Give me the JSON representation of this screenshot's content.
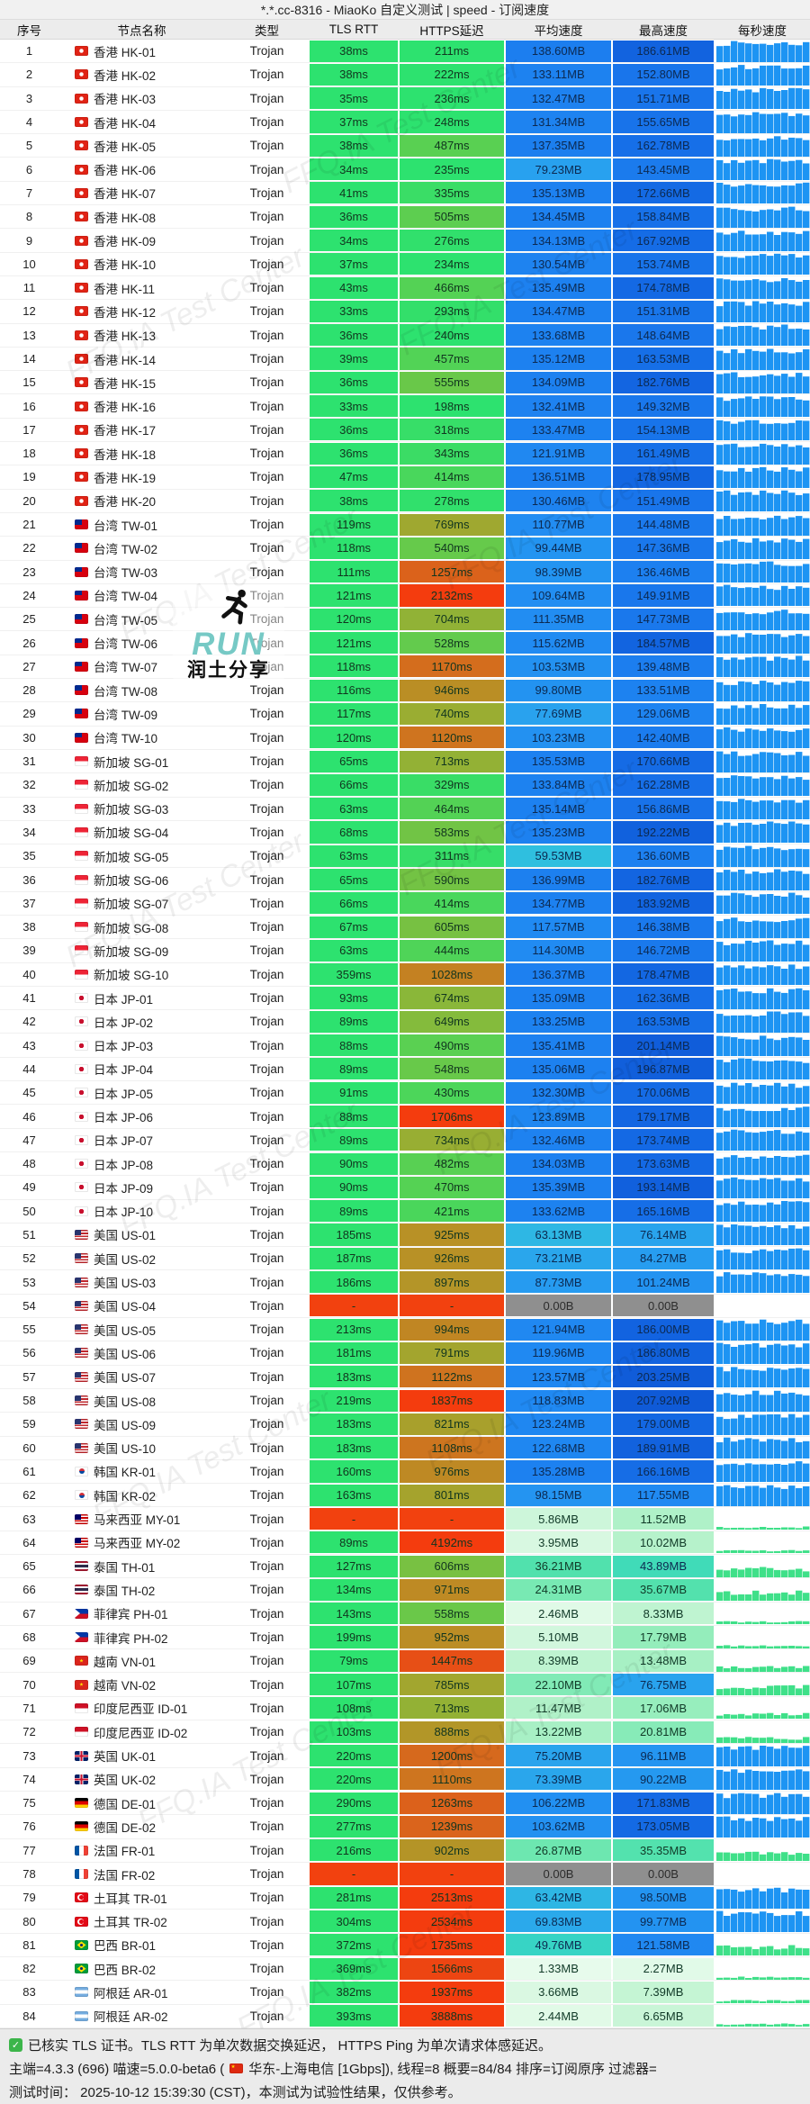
{
  "title": "*.*.cc-8316 - MiaoKo 自定义测试 | speed - 订阅速度",
  "watermark": {
    "text": "FFQ.IA Test Center"
  },
  "logo": {
    "run": "RUN",
    "caption": "润土分享"
  },
  "colors": {
    "rtt_ok": "#2de26f",
    "fail": "#f2410f",
    "zero_bg": "#8f8f8f",
    "spark_blue": "#1d94f3",
    "spark_green": "#3fe089",
    "latency_stops": [
      [
        250,
        "#2de26f"
      ],
      [
        350,
        "#3cdc64"
      ],
      [
        450,
        "#50d457"
      ],
      [
        550,
        "#68c94a"
      ],
      [
        650,
        "#84bb3c"
      ],
      [
        750,
        "#9cab31"
      ],
      [
        850,
        "#ad9c2a"
      ],
      [
        950,
        "#bb8d25"
      ],
      [
        1050,
        "#c77e21"
      ],
      [
        1150,
        "#d26f1e"
      ],
      [
        1300,
        "#df5d1a"
      ],
      [
        1500,
        "#ea4a14"
      ],
      [
        1700,
        "#f43c0e"
      ]
    ],
    "speed_stops": [
      [
        0,
        "#eefcf2"
      ],
      [
        2,
        "#e3fae9"
      ],
      [
        5,
        "#d2f7dd"
      ],
      [
        10,
        "#b6f2cb"
      ],
      [
        18,
        "#93edbb"
      ],
      [
        28,
        "#68e6af"
      ],
      [
        38,
        "#4ce0ad"
      ],
      [
        48,
        "#38d8c0"
      ],
      [
        58,
        "#30c3dd"
      ],
      [
        68,
        "#2cabea"
      ],
      [
        80,
        "#28a0ef"
      ],
      [
        95,
        "#2496f1"
      ],
      [
        115,
        "#218bf2"
      ],
      [
        135,
        "#1d81f0"
      ],
      [
        155,
        "#1873ea"
      ],
      [
        180,
        "#1366e2"
      ],
      [
        210,
        "#0f59d6"
      ]
    ]
  },
  "table": {
    "columns": [
      "序号",
      "节点名称",
      "类型",
      "TLS RTT",
      "HTTPS延迟",
      "平均速度",
      "最高速度",
      "每秒速度"
    ],
    "rows": [
      [
        1,
        "hk",
        "香港 HK-01",
        "Trojan",
        "38ms",
        "211ms",
        "138.60MB",
        "186.61MB"
      ],
      [
        2,
        "hk",
        "香港 HK-02",
        "Trojan",
        "38ms",
        "222ms",
        "133.11MB",
        "152.80MB"
      ],
      [
        3,
        "hk",
        "香港 HK-03",
        "Trojan",
        "35ms",
        "236ms",
        "132.47MB",
        "151.71MB"
      ],
      [
        4,
        "hk",
        "香港 HK-04",
        "Trojan",
        "37ms",
        "248ms",
        "131.34MB",
        "155.65MB"
      ],
      [
        5,
        "hk",
        "香港 HK-05",
        "Trojan",
        "38ms",
        "487ms",
        "137.35MB",
        "162.78MB"
      ],
      [
        6,
        "hk",
        "香港 HK-06",
        "Trojan",
        "34ms",
        "235ms",
        "79.23MB",
        "143.45MB"
      ],
      [
        7,
        "hk",
        "香港 HK-07",
        "Trojan",
        "41ms",
        "335ms",
        "135.13MB",
        "172.66MB"
      ],
      [
        8,
        "hk",
        "香港 HK-08",
        "Trojan",
        "36ms",
        "505ms",
        "134.45MB",
        "158.84MB"
      ],
      [
        9,
        "hk",
        "香港 HK-09",
        "Trojan",
        "34ms",
        "276ms",
        "134.13MB",
        "167.92MB"
      ],
      [
        10,
        "hk",
        "香港 HK-10",
        "Trojan",
        "37ms",
        "234ms",
        "130.54MB",
        "153.74MB"
      ],
      [
        11,
        "hk",
        "香港 HK-11",
        "Trojan",
        "43ms",
        "466ms",
        "135.49MB",
        "174.78MB"
      ],
      [
        12,
        "hk",
        "香港 HK-12",
        "Trojan",
        "33ms",
        "293ms",
        "134.47MB",
        "151.31MB"
      ],
      [
        13,
        "hk",
        "香港 HK-13",
        "Trojan",
        "36ms",
        "240ms",
        "133.68MB",
        "148.64MB"
      ],
      [
        14,
        "hk",
        "香港 HK-14",
        "Trojan",
        "39ms",
        "457ms",
        "135.12MB",
        "163.53MB"
      ],
      [
        15,
        "hk",
        "香港 HK-15",
        "Trojan",
        "36ms",
        "555ms",
        "134.09MB",
        "182.76MB"
      ],
      [
        16,
        "hk",
        "香港 HK-16",
        "Trojan",
        "33ms",
        "198ms",
        "132.41MB",
        "149.32MB"
      ],
      [
        17,
        "hk",
        "香港 HK-17",
        "Trojan",
        "36ms",
        "318ms",
        "133.47MB",
        "154.13MB"
      ],
      [
        18,
        "hk",
        "香港 HK-18",
        "Trojan",
        "36ms",
        "343ms",
        "121.91MB",
        "161.49MB"
      ],
      [
        19,
        "hk",
        "香港 HK-19",
        "Trojan",
        "47ms",
        "414ms",
        "136.51MB",
        "178.95MB"
      ],
      [
        20,
        "hk",
        "香港 HK-20",
        "Trojan",
        "38ms",
        "278ms",
        "130.46MB",
        "151.49MB"
      ],
      [
        21,
        "tw",
        "台湾 TW-01",
        "Trojan",
        "119ms",
        "769ms",
        "110.77MB",
        "144.48MB"
      ],
      [
        22,
        "tw",
        "台湾 TW-02",
        "Trojan",
        "118ms",
        "540ms",
        "99.44MB",
        "147.36MB"
      ],
      [
        23,
        "tw",
        "台湾 TW-03",
        "Trojan",
        "111ms",
        "1257ms",
        "98.39MB",
        "136.46MB"
      ],
      [
        24,
        "tw",
        "台湾 TW-04",
        "Trojan",
        "121ms",
        "2132ms",
        "109.64MB",
        "149.91MB"
      ],
      [
        25,
        "tw",
        "台湾 TW-05",
        "Trojan",
        "120ms",
        "704ms",
        "111.35MB",
        "147.73MB"
      ],
      [
        26,
        "tw",
        "台湾 TW-06",
        "Trojan",
        "121ms",
        "528ms",
        "115.62MB",
        "184.57MB"
      ],
      [
        27,
        "tw",
        "台湾 TW-07",
        "Trojan",
        "118ms",
        "1170ms",
        "103.53MB",
        "139.48MB"
      ],
      [
        28,
        "tw",
        "台湾 TW-08",
        "Trojan",
        "116ms",
        "946ms",
        "99.80MB",
        "133.51MB"
      ],
      [
        29,
        "tw",
        "台湾 TW-09",
        "Trojan",
        "117ms",
        "740ms",
        "77.69MB",
        "129.06MB"
      ],
      [
        30,
        "tw",
        "台湾 TW-10",
        "Trojan",
        "120ms",
        "1120ms",
        "103.23MB",
        "142.40MB"
      ],
      [
        31,
        "sg",
        "新加坡 SG-01",
        "Trojan",
        "65ms",
        "713ms",
        "135.53MB",
        "170.66MB"
      ],
      [
        32,
        "sg",
        "新加坡 SG-02",
        "Trojan",
        "66ms",
        "329ms",
        "133.84MB",
        "162.28MB"
      ],
      [
        33,
        "sg",
        "新加坡 SG-03",
        "Trojan",
        "63ms",
        "464ms",
        "135.14MB",
        "156.86MB"
      ],
      [
        34,
        "sg",
        "新加坡 SG-04",
        "Trojan",
        "68ms",
        "583ms",
        "135.23MB",
        "192.22MB"
      ],
      [
        35,
        "sg",
        "新加坡 SG-05",
        "Trojan",
        "63ms",
        "311ms",
        "59.53MB",
        "136.60MB"
      ],
      [
        36,
        "sg",
        "新加坡 SG-06",
        "Trojan",
        "65ms",
        "590ms",
        "136.99MB",
        "182.76MB"
      ],
      [
        37,
        "sg",
        "新加坡 SG-07",
        "Trojan",
        "66ms",
        "414ms",
        "134.77MB",
        "183.92MB"
      ],
      [
        38,
        "sg",
        "新加坡 SG-08",
        "Trojan",
        "67ms",
        "605ms",
        "117.57MB",
        "146.38MB"
      ],
      [
        39,
        "sg",
        "新加坡 SG-09",
        "Trojan",
        "63ms",
        "444ms",
        "114.30MB",
        "146.72MB"
      ],
      [
        40,
        "sg",
        "新加坡 SG-10",
        "Trojan",
        "359ms",
        "1028ms",
        "136.37MB",
        "178.47MB"
      ],
      [
        41,
        "jp",
        "日本 JP-01",
        "Trojan",
        "93ms",
        "674ms",
        "135.09MB",
        "162.36MB"
      ],
      [
        42,
        "jp",
        "日本 JP-02",
        "Trojan",
        "89ms",
        "649ms",
        "133.25MB",
        "163.53MB"
      ],
      [
        43,
        "jp",
        "日本 JP-03",
        "Trojan",
        "88ms",
        "490ms",
        "135.41MB",
        "201.14MB"
      ],
      [
        44,
        "jp",
        "日本 JP-04",
        "Trojan",
        "89ms",
        "548ms",
        "135.06MB",
        "196.87MB"
      ],
      [
        45,
        "jp",
        "日本 JP-05",
        "Trojan",
        "91ms",
        "430ms",
        "132.30MB",
        "170.06MB"
      ],
      [
        46,
        "jp",
        "日本 JP-06",
        "Trojan",
        "88ms",
        "1706ms",
        "123.89MB",
        "179.17MB"
      ],
      [
        47,
        "jp",
        "日本 JP-07",
        "Trojan",
        "89ms",
        "734ms",
        "132.46MB",
        "173.74MB"
      ],
      [
        48,
        "jp",
        "日本 JP-08",
        "Trojan",
        "90ms",
        "482ms",
        "134.03MB",
        "173.63MB"
      ],
      [
        49,
        "jp",
        "日本 JP-09",
        "Trojan",
        "90ms",
        "470ms",
        "135.39MB",
        "193.14MB"
      ],
      [
        50,
        "jp",
        "日本 JP-10",
        "Trojan",
        "89ms",
        "421ms",
        "133.62MB",
        "165.16MB"
      ],
      [
        51,
        "us",
        "美国 US-01",
        "Trojan",
        "185ms",
        "925ms",
        "63.13MB",
        "76.14MB"
      ],
      [
        52,
        "us",
        "美国 US-02",
        "Trojan",
        "187ms",
        "926ms",
        "73.21MB",
        "84.27MB"
      ],
      [
        53,
        "us",
        "美国 US-03",
        "Trojan",
        "186ms",
        "897ms",
        "87.73MB",
        "101.24MB"
      ],
      [
        54,
        "us",
        "美国 US-04",
        "Trojan",
        "-",
        "-",
        "0.00B",
        "0.00B"
      ],
      [
        55,
        "us",
        "美国 US-05",
        "Trojan",
        "213ms",
        "994ms",
        "121.94MB",
        "186.00MB"
      ],
      [
        56,
        "us",
        "美国 US-06",
        "Trojan",
        "181ms",
        "791ms",
        "119.96MB",
        "186.80MB"
      ],
      [
        57,
        "us",
        "美国 US-07",
        "Trojan",
        "183ms",
        "1122ms",
        "123.57MB",
        "203.25MB"
      ],
      [
        58,
        "us",
        "美国 US-08",
        "Trojan",
        "219ms",
        "1837ms",
        "118.83MB",
        "207.92MB"
      ],
      [
        59,
        "us",
        "美国 US-09",
        "Trojan",
        "183ms",
        "821ms",
        "123.24MB",
        "179.00MB"
      ],
      [
        60,
        "us",
        "美国 US-10",
        "Trojan",
        "183ms",
        "1108ms",
        "122.68MB",
        "189.91MB"
      ],
      [
        61,
        "kr",
        "韩国 KR-01",
        "Trojan",
        "160ms",
        "976ms",
        "135.28MB",
        "166.16MB"
      ],
      [
        62,
        "kr",
        "韩国 KR-02",
        "Trojan",
        "163ms",
        "801ms",
        "98.15MB",
        "117.55MB"
      ],
      [
        63,
        "my",
        "马来西亚 MY-01",
        "Trojan",
        "-",
        "-",
        "5.86MB",
        "11.52MB"
      ],
      [
        64,
        "my",
        "马来西亚 MY-02",
        "Trojan",
        "89ms",
        "4192ms",
        "3.95MB",
        "10.02MB"
      ],
      [
        65,
        "th",
        "泰国 TH-01",
        "Trojan",
        "127ms",
        "606ms",
        "36.21MB",
        "43.89MB"
      ],
      [
        66,
        "th",
        "泰国 TH-02",
        "Trojan",
        "134ms",
        "971ms",
        "24.31MB",
        "35.67MB"
      ],
      [
        67,
        "ph",
        "菲律宾 PH-01",
        "Trojan",
        "143ms",
        "558ms",
        "2.46MB",
        "8.33MB"
      ],
      [
        68,
        "ph",
        "菲律宾 PH-02",
        "Trojan",
        "199ms",
        "952ms",
        "5.10MB",
        "17.79MB"
      ],
      [
        69,
        "vn",
        "越南 VN-01",
        "Trojan",
        "79ms",
        "1447ms",
        "8.39MB",
        "13.48MB"
      ],
      [
        70,
        "vn",
        "越南 VN-02",
        "Trojan",
        "107ms",
        "785ms",
        "22.10MB",
        "76.75MB"
      ],
      [
        71,
        "id",
        "印度尼西亚 ID-01",
        "Trojan",
        "108ms",
        "713ms",
        "11.47MB",
        "17.06MB"
      ],
      [
        72,
        "id",
        "印度尼西亚 ID-02",
        "Trojan",
        "103ms",
        "888ms",
        "13.22MB",
        "20.81MB"
      ],
      [
        73,
        "gb",
        "英国 UK-01",
        "Trojan",
        "220ms",
        "1200ms",
        "75.20MB",
        "96.11MB"
      ],
      [
        74,
        "gb",
        "英国 UK-02",
        "Trojan",
        "220ms",
        "1110ms",
        "73.39MB",
        "90.22MB"
      ],
      [
        75,
        "de",
        "德国 DE-01",
        "Trojan",
        "290ms",
        "1263ms",
        "106.22MB",
        "171.83MB"
      ],
      [
        76,
        "de",
        "德国 DE-02",
        "Trojan",
        "277ms",
        "1239ms",
        "103.62MB",
        "173.05MB"
      ],
      [
        77,
        "fr",
        "法国 FR-01",
        "Trojan",
        "216ms",
        "902ms",
        "26.87MB",
        "35.35MB"
      ],
      [
        78,
        "fr",
        "法国 FR-02",
        "Trojan",
        "-",
        "-",
        "0.00B",
        "0.00B"
      ],
      [
        79,
        "tr",
        "土耳其 TR-01",
        "Trojan",
        "281ms",
        "2513ms",
        "63.42MB",
        "98.50MB"
      ],
      [
        80,
        "tr",
        "土耳其 TR-02",
        "Trojan",
        "304ms",
        "2534ms",
        "69.83MB",
        "99.77MB"
      ],
      [
        81,
        "br",
        "巴西 BR-01",
        "Trojan",
        "372ms",
        "1735ms",
        "49.76MB",
        "121.58MB"
      ],
      [
        82,
        "br",
        "巴西 BR-02",
        "Trojan",
        "369ms",
        "1566ms",
        "1.33MB",
        "2.27MB"
      ],
      [
        83,
        "ar",
        "阿根廷 AR-01",
        "Trojan",
        "382ms",
        "1937ms",
        "3.66MB",
        "7.39MB"
      ],
      [
        84,
        "ar",
        "阿根廷 AR-02",
        "Trojan",
        "393ms",
        "3888ms",
        "2.44MB",
        "6.65MB"
      ]
    ]
  },
  "footer": {
    "line1": "已核实 TLS 证书。TLS RTT 为单次数据交换延迟， HTTPS Ping 为单次请求体感延迟。",
    "line2_prefix": "主端=4.3.3 (696) 喵速=5.0.0-beta6 (",
    "line2_suffix": "华东-上海电信 [1Gbps]), 线程=8 概要=84/84 排序=订阅原序 过滤器=",
    "line3": "测试时间： 2025-10-12 15:39:30 (CST)，本测试为试验性结果，仅供参考。"
  }
}
